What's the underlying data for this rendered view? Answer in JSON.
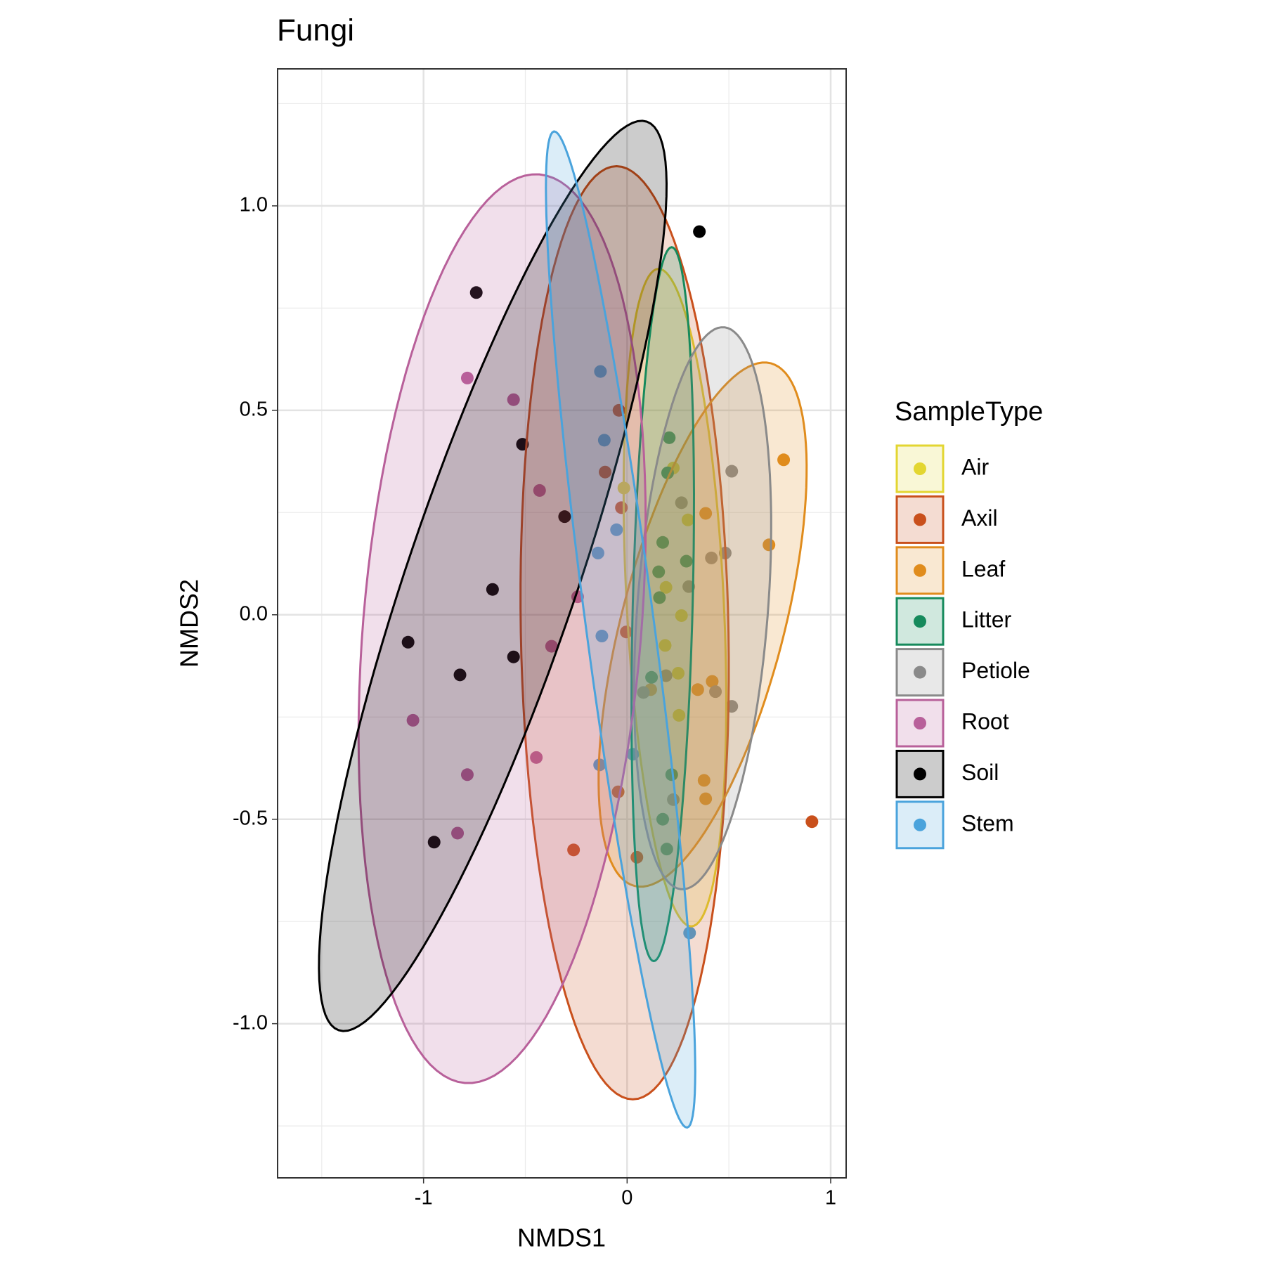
{
  "chart_data": {
    "type": "scatter",
    "title": "Fungi",
    "x_label": "NMDS1",
    "y_label": "NMDS2",
    "legend_title": "SampleType",
    "legend_position": "right",
    "grid": true,
    "xlim": [
      -1.717,
      1.076
    ],
    "ylim": [
      -1.377,
      1.335
    ],
    "xticks": [
      -1,
      0,
      1
    ],
    "yticks": [
      {
        "value": -1,
        "label": "-1.0"
      },
      {
        "value": -0.5,
        "label": "-0.5"
      },
      {
        "value": 0,
        "label": "0.0"
      },
      {
        "value": 0.5,
        "label": "0.5"
      },
      {
        "value": 1,
        "label": "1.0"
      }
    ],
    "x_minor_grid": [
      -1.5,
      -0.5,
      0.5
    ],
    "y_minor_grid": [
      -1.25,
      -0.75,
      -0.25,
      0.25,
      0.75,
      1.25
    ],
    "series": [
      {
        "name": "Air",
        "color": "#e3d631",
        "x": [
          -0.016,
          0.299,
          0.227,
          0.191,
          0.187,
          0.251,
          0.255,
          0.267
        ],
        "values": [
          0.31,
          0.232,
          0.359,
          0.067,
          -0.075,
          -0.143,
          -0.246,
          -0.002
        ],
        "ellipse": {
          "center": [
            0.235,
            0.042
          ],
          "axis1": [
            -0.08,
            0.804
          ],
          "axis2": [
            0.239,
            0
          ]
        }
      },
      {
        "name": "Axil",
        "color": "#c9501c",
        "x": [
          -0.04,
          -0.108,
          -0.028,
          -0.004,
          -0.263,
          -0.044,
          0.048,
          0.908
        ],
        "values": [
          0.5,
          0.349,
          0.262,
          -0.042,
          -0.575,
          -0.433,
          -0.593,
          -0.506
        ],
        "ellipse": {
          "center": [
            -0.012,
            -0.044
          ],
          "axis1": [
            -0.04,
            1.141
          ],
          "axis2": [
            0.51,
            0
          ]
        }
      },
      {
        "name": "Leaf",
        "color": "#e08c1d",
        "x": [
          0.769,
          0.697,
          0.386,
          0.347,
          0.418,
          0.378,
          0.386,
          0.116
        ],
        "values": [
          0.379,
          0.171,
          0.248,
          -0.183,
          -0.163,
          -0.405,
          -0.45,
          -0.183
        ],
        "ellipse": {
          "center": [
            0.371,
            -0.024
          ],
          "axis1": [
            0.335,
            0.639
          ],
          "axis2": [
            0.386,
            -0.05
          ]
        }
      },
      {
        "name": "Litter",
        "color": "#168a5c",
        "x": [
          0.207,
          0.199,
          0.175,
          0.291,
          0.155,
          0.159,
          0.12,
          0.219,
          0.175,
          0.195
        ],
        "values": [
          0.433,
          0.347,
          0.177,
          0.131,
          0.105,
          0.042,
          -0.153,
          -0.391,
          -0.5,
          -0.573
        ],
        "ellipse": {
          "center": [
            0.175,
            0.026
          ],
          "axis1": [
            0.044,
            0.873
          ],
          "axis2": [
            0.147,
            0
          ]
        }
      },
      {
        "name": "Petiole",
        "color": "#8a8a8a",
        "x": [
          0.514,
          0.267,
          0.414,
          0.482,
          0.303,
          0.191,
          0.434,
          0.514,
          0.08,
          0.227
        ],
        "values": [
          0.351,
          0.274,
          0.139,
          0.151,
          0.069,
          -0.149,
          -0.188,
          -0.224,
          -0.19,
          -0.452
        ],
        "ellipse": {
          "center": [
            0.371,
            0.016
          ],
          "axis1": [
            0.108,
            0.687
          ],
          "axis2": [
            0.319,
            -0.02
          ]
        }
      },
      {
        "name": "Root",
        "color": "#b8609a",
        "x": [
          -0.785,
          -0.558,
          -0.43,
          -0.243,
          -0.371,
          -1.052,
          -0.446,
          -0.785,
          -0.833
        ],
        "values": [
          0.579,
          0.526,
          0.304,
          0.044,
          -0.077,
          -0.258,
          -0.349,
          -0.391,
          -0.534
        ],
        "ellipse": {
          "center": [
            -0.614,
            -0.034
          ],
          "axis1": [
            0.183,
            1.111
          ],
          "axis2": [
            0.681,
            -0.028
          ]
        }
      },
      {
        "name": "Soil",
        "color": "#000000",
        "x": [
          0.355,
          -0.741,
          -0.514,
          -0.307,
          -0.661,
          -1.076,
          -0.558,
          -0.821,
          -0.948
        ],
        "values": [
          0.937,
          0.788,
          0.417,
          0.24,
          0.062,
          -0.067,
          -0.103,
          -0.147,
          -0.556
        ],
        "ellipse": {
          "center": [
            -0.66,
            0.095
          ],
          "axis1": [
            0.757,
            1.111
          ],
          "axis2": [
            0.395,
            -0.067
          ]
        }
      },
      {
        "name": "Stem",
        "color": "#4aa3dc",
        "x": [
          -0.131,
          -0.112,
          -0.052,
          -0.143,
          -0.124,
          -0.135,
          0.028,
          0.307
        ],
        "values": [
          0.595,
          0.427,
          0.208,
          0.151,
          -0.052,
          -0.367,
          -0.341,
          -0.778
        ],
        "ellipse": {
          "center": [
            -0.032,
            -0.036
          ],
          "axis1": [
            -0.327,
            1.218
          ],
          "axis2": [
            0.166,
            0.011
          ]
        }
      }
    ]
  }
}
